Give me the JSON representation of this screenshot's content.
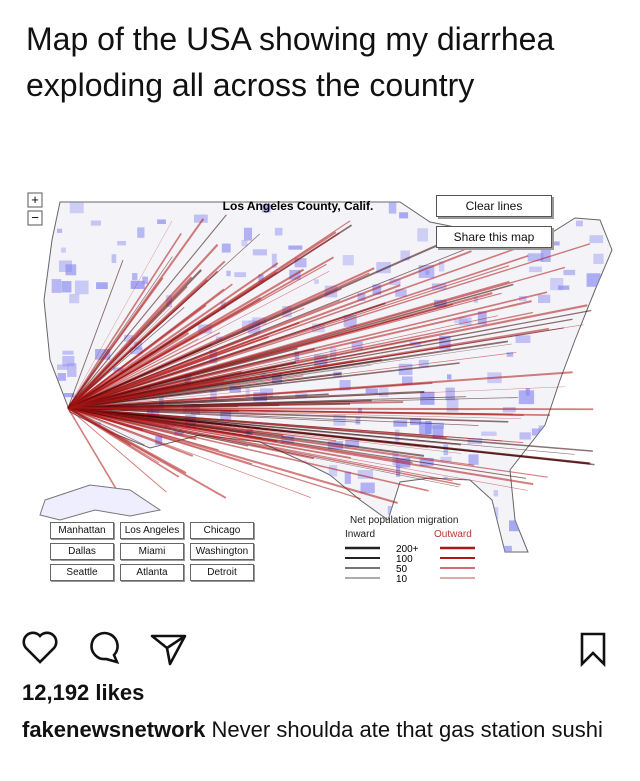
{
  "post": {
    "heading": "Map of the USA showing my diarrhea exploding all across the country",
    "map": {
      "title": "Los Angeles County, Calif.",
      "zoom": [
        "+",
        "−"
      ],
      "buttons": [
        "Clear lines",
        "Share this map"
      ],
      "cities": [
        "Manhattan",
        "Los Angeles",
        "Chicago",
        "Dallas",
        "Miami",
        "Washington",
        "Seattle",
        "Atlanta",
        "Detroit"
      ],
      "legend": {
        "title": "Net population migration",
        "inward": "Inward",
        "outward": "Outward",
        "levels": [
          "200+",
          "100",
          "50",
          "10"
        ]
      }
    },
    "likes": "12,192 likes",
    "username": "fakenewsnetwork",
    "caption": "Never shoulda ate that gas station sushi"
  }
}
